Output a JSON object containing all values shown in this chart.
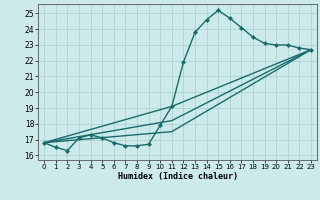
{
  "xlabel": "Humidex (Indice chaleur)",
  "bg_color": "#cceaea",
  "grid_color": "#aacccc",
  "line_color": "#1a6b6b",
  "xlim": [
    -0.5,
    23.5
  ],
  "ylim": [
    15.7,
    25.6
  ],
  "yticks": [
    16,
    17,
    18,
    19,
    20,
    21,
    22,
    23,
    24,
    25
  ],
  "xticks": [
    0,
    1,
    2,
    3,
    4,
    5,
    6,
    7,
    8,
    9,
    10,
    11,
    12,
    13,
    14,
    15,
    16,
    17,
    18,
    19,
    20,
    21,
    22,
    23
  ],
  "series": [
    {
      "x": [
        0,
        1,
        2,
        3,
        4,
        5,
        6,
        7,
        8,
        9,
        10,
        11,
        12,
        13,
        14,
        15,
        16,
        17,
        18,
        19,
        20,
        21,
        22,
        23
      ],
      "y": [
        16.8,
        16.5,
        16.3,
        17.1,
        17.3,
        17.1,
        16.8,
        16.6,
        16.6,
        16.7,
        17.9,
        19.1,
        21.9,
        23.8,
        24.6,
        25.2,
        24.7,
        24.1,
        23.5,
        23.1,
        23.0,
        23.0,
        22.8,
        22.7
      ],
      "marker": "D",
      "markersize": 2.0,
      "linewidth": 1.0
    },
    {
      "x": [
        0,
        11,
        23
      ],
      "y": [
        16.8,
        19.1,
        22.7
      ],
      "marker": null,
      "linewidth": 1.0
    },
    {
      "x": [
        0,
        11,
        23
      ],
      "y": [
        16.8,
        18.2,
        22.7
      ],
      "marker": null,
      "linewidth": 1.0
    },
    {
      "x": [
        0,
        11,
        23
      ],
      "y": [
        16.8,
        17.5,
        22.7
      ],
      "marker": null,
      "linewidth": 1.0
    }
  ]
}
